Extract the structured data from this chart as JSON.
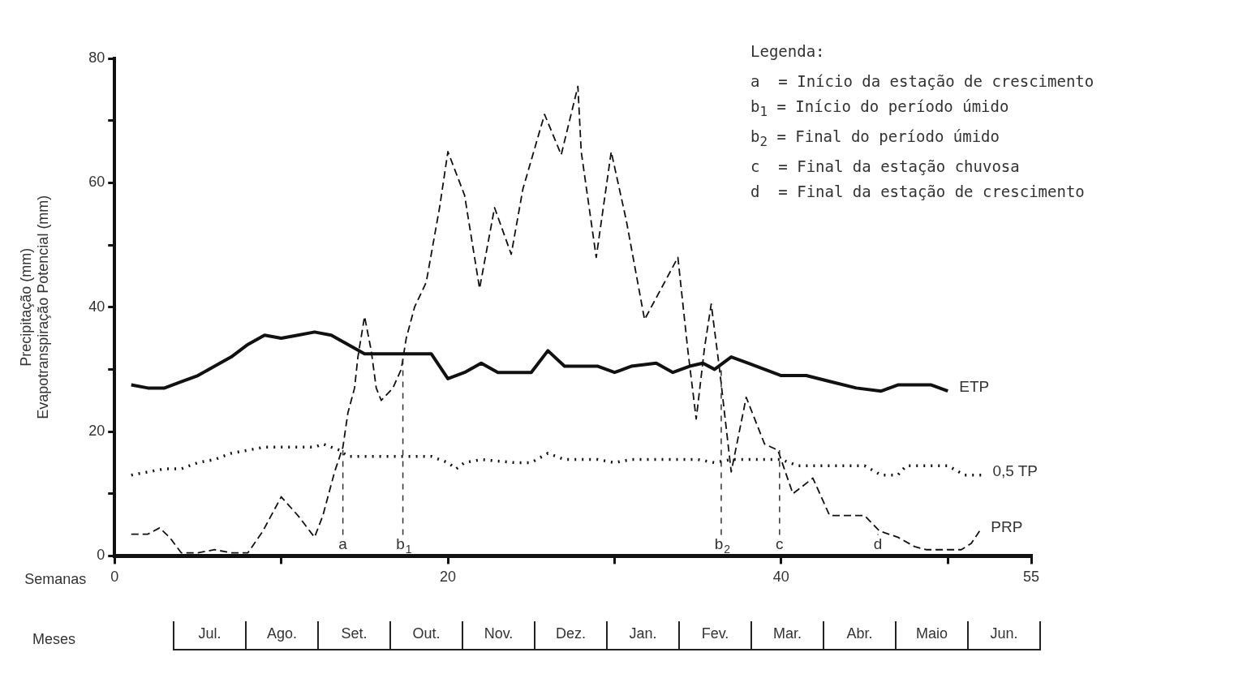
{
  "chart_data": {
    "type": "line",
    "xlabel": "Semanas",
    "ylabel": "Precipitação (mm)\nEvapotranspiração Potencial (mm)",
    "legend_title": "Legenda:",
    "xlim": [
      0,
      55
    ],
    "xticks": [
      0,
      {
        "value": 10,
        "label": null
      },
      20,
      {
        "value": 30,
        "label": null
      },
      40,
      {
        "value": 50,
        "label": null
      },
      55
    ],
    "ylim": [
      0,
      80
    ],
    "yticks": [
      0,
      {
        "value": 10,
        "label": null
      },
      20,
      {
        "value": 30,
        "label": null
      },
      40,
      {
        "value": 50,
        "label": null
      },
      60,
      {
        "value": 70,
        "label": null
      },
      80
    ],
    "grid": false,
    "marker": "none",
    "series": [
      {
        "name": "ETP",
        "color": "#111111",
        "line_style": "solid",
        "x": [
          1,
          2,
          3,
          4,
          5,
          6,
          7,
          8,
          9,
          10,
          11,
          12,
          13,
          14,
          15,
          19,
          20,
          21,
          22,
          23,
          25,
          26,
          27,
          29,
          30,
          31,
          32.5,
          33.5,
          34.5,
          35.3,
          36,
          37,
          38,
          39,
          40,
          41.5,
          43,
          44.5,
          46,
          47,
          49,
          50
        ],
        "values": [
          27.5,
          27,
          27,
          28,
          29,
          30.5,
          32,
          34,
          35.5,
          35,
          35.5,
          36,
          35.5,
          34,
          32.5,
          32.5,
          28.5,
          29.5,
          31,
          29.5,
          29.5,
          33,
          30.5,
          30.5,
          29.5,
          30.5,
          31,
          29.5,
          30.5,
          31,
          30,
          32,
          31,
          30,
          29,
          29,
          28,
          27,
          26.5,
          27.5,
          27.5,
          26.5
        ]
      },
      {
        "name": "0,5 TP",
        "color": "#111111",
        "line_style": "dotted",
        "x": [
          1,
          2,
          3,
          4,
          5,
          6,
          7,
          8,
          9,
          12,
          12.5,
          13.5,
          14,
          19,
          20,
          20.5,
          21,
          22,
          24,
          25,
          26,
          27,
          29,
          30,
          31,
          35,
          36,
          37,
          40,
          41,
          45,
          46,
          47,
          47.5,
          50,
          51,
          52
        ],
        "values": [
          13,
          13.5,
          14,
          14,
          15,
          15.5,
          16.5,
          17,
          17.5,
          17.5,
          18,
          17,
          16,
          16,
          15,
          14,
          15,
          15.5,
          15,
          15,
          16.5,
          15.5,
          15.5,
          15,
          15.5,
          15.5,
          15,
          15.5,
          15.5,
          14.5,
          14.5,
          13,
          13,
          14.5,
          14.5,
          13,
          13
        ]
      },
      {
        "name": "PRP",
        "color": "#111111",
        "line_style": "dashed",
        "x": [
          1,
          2,
          2.7,
          3.3,
          4,
          5,
          6,
          7,
          8,
          8.9,
          10,
          11,
          12,
          12.5,
          13.2,
          13.7,
          14,
          14.4,
          14.6,
          15,
          15.4,
          15.7,
          16,
          16.7,
          17.2,
          17.5,
          18,
          18.7,
          19.5,
          20,
          21,
          21.9,
          22.8,
          23.8,
          24.5,
          25.8,
          26.8,
          27.8,
          28,
          28.9,
          29.8,
          30.7,
          31.8,
          33.8,
          34.4,
          34.9,
          35.4,
          35.8,
          36.3,
          37,
          37.9,
          39,
          39.8,
          40.7,
          41.9,
          42.9,
          45,
          45.9,
          47,
          48,
          48.7,
          50.8,
          51.4,
          51.9
        ],
        "values": [
          3.5,
          3.5,
          4.5,
          3,
          0.5,
          0.5,
          1,
          0.5,
          0.5,
          4,
          9.5,
          6.5,
          3,
          6.5,
          13.5,
          17.5,
          23,
          27,
          32,
          38.5,
          33,
          27,
          25,
          27,
          30,
          35,
          40,
          44,
          56,
          65,
          58,
          43,
          56,
          48.5,
          59,
          71,
          64.5,
          75.5,
          65,
          48,
          65,
          54,
          38,
          48,
          33,
          22,
          33.5,
          40.5,
          30,
          13.5,
          25.5,
          18,
          17,
          10,
          12.5,
          6.5,
          6.5,
          4,
          3,
          1.5,
          1,
          1,
          2,
          4
        ]
      }
    ],
    "annotations": [
      {
        "text": "a",
        "x": 13.7,
        "y": 17
      },
      {
        "text": "b$_{1}$",
        "x": 17.3,
        "y": 32.5
      },
      {
        "text": "b$_{2}$",
        "x": 36.4,
        "y": 30
      },
      {
        "text": "c",
        "x": 39.9,
        "y": 17
      },
      {
        "text": "d",
        "x": 45.8,
        "y": 3.5
      },
      "a  = Início da estação de crescimento",
      "b$_{1}$ = Início do período úmido",
      "b$_{2}$ = Final do período úmido",
      "c  = Final da estação chuvosa",
      "d  = Final da estação de crescimento",
      "Meses",
      "Jul.",
      "Ago.",
      "Set.",
      "Out.",
      "Nov.",
      "Dez.",
      "Jan.",
      "Fev.",
      "Mar.",
      "Abr.",
      "Maio",
      "Jun."
    ]
  }
}
